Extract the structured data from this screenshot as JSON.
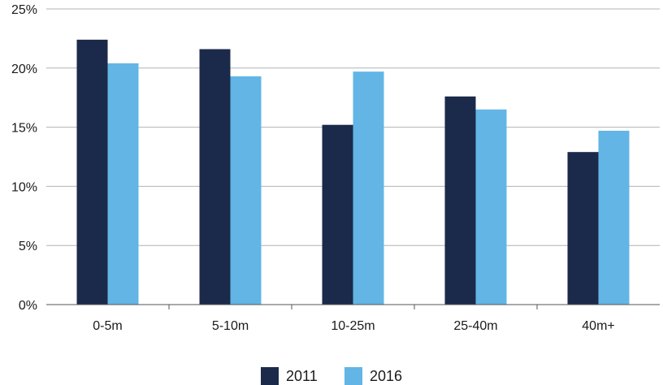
{
  "chart_data": {
    "type": "bar",
    "title": "",
    "xlabel": "",
    "ylabel": "",
    "categories": [
      "0-5m",
      "5-10m",
      "10-25m",
      "25-40m",
      "40m+"
    ],
    "series": [
      {
        "name": "2011",
        "color": "#1b2a4a",
        "values": [
          22.4,
          21.6,
          15.2,
          17.6,
          12.9
        ]
      },
      {
        "name": "2016",
        "color": "#62b5e5",
        "values": [
          20.4,
          19.3,
          19.7,
          16.5,
          14.7
        ]
      }
    ],
    "ylim": [
      0,
      25
    ],
    "yticks": [
      0,
      5,
      10,
      15,
      20,
      25
    ],
    "ytick_labels": [
      "0%",
      "5%",
      "10%",
      "15%",
      "20%",
      "25%"
    ],
    "grid": true,
    "legend_position": "bottom-center"
  }
}
